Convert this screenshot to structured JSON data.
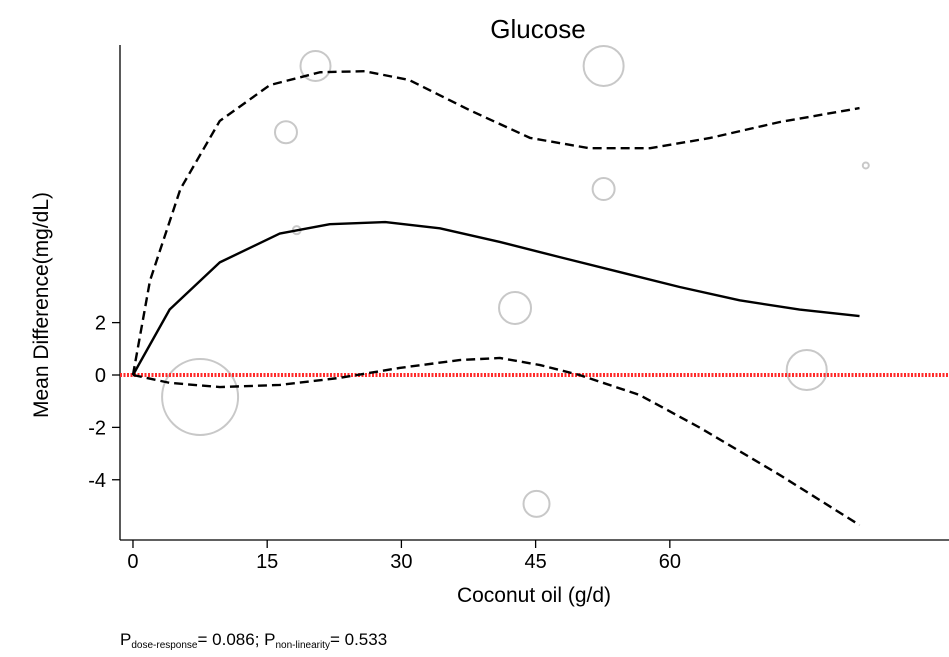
{
  "chart_data": {
    "type": "line",
    "title": "Glucose",
    "x_label": "Coconut oil (g/d)",
    "y_label": "Mean Difference(mg/dL)",
    "xlim": [
      -1.45,
      91.2
    ],
    "ylim": [
      -6.3,
      12.6
    ],
    "xticks": [
      0,
      15,
      30,
      45,
      60
    ],
    "yticks": [
      -4,
      -2,
      0,
      2
    ],
    "reference_line": {
      "value": 0,
      "color": "#ff2a2a"
    },
    "series": [
      {
        "color": "#000000",
        "dashed": false,
        "x": [
          0,
          4.1,
          9.7,
          16.4,
          22,
          28.2,
          34.3,
          41,
          47.7,
          54.4,
          61.1,
          67.8,
          74.5,
          81.2
        ],
        "values": [
          0,
          2.5,
          4.3,
          5.4,
          5.76,
          5.84,
          5.6,
          5.08,
          4.5,
          3.93,
          3.36,
          2.85,
          2.5,
          2.25
        ]
      },
      {
        "color": "#000000",
        "dashed": true,
        "x": [
          0,
          1.9,
          5.3,
          9.7,
          15.3,
          20.9,
          25.9,
          30.9,
          37.7,
          44.4,
          51,
          57.8,
          64.5,
          72.3,
          81.2
        ],
        "values": [
          0,
          3.6,
          7.1,
          9.7,
          11.07,
          11.56,
          11.6,
          11.26,
          10.1,
          9.05,
          8.66,
          8.66,
          9.05,
          9.66,
          10.19
        ]
      },
      {
        "color": "#000000",
        "dashed": true,
        "x": [
          0,
          4.1,
          9.7,
          16.4,
          23.1,
          29.8,
          36.5,
          41,
          45.5,
          49.9,
          56.6,
          63.4,
          72.3,
          81.2
        ],
        "values": [
          0,
          -0.3,
          -0.46,
          -0.38,
          -0.11,
          0.27,
          0.57,
          0.65,
          0.38,
          0,
          -0.76,
          -2.02,
          -3.82,
          -5.73
        ]
      }
    ],
    "points": {
      "color": "#c8c8c8",
      "x": [
        7.5,
        20.4,
        17.1,
        18.3,
        52.6,
        52.6,
        81.9,
        42.7,
        45.1,
        75.3
      ],
      "y": [
        -0.84,
        11.8,
        9.27,
        5.53,
        11.8,
        7.1,
        8.0,
        2.56,
        -4.92,
        0.19
      ],
      "size": [
        38,
        15,
        11,
        4,
        20,
        11,
        3,
        16,
        13,
        20
      ]
    },
    "footnote": [
      "P",
      "dose-response",
      "= 0.086; P",
      "non-linearity",
      "= 0.533"
    ]
  }
}
